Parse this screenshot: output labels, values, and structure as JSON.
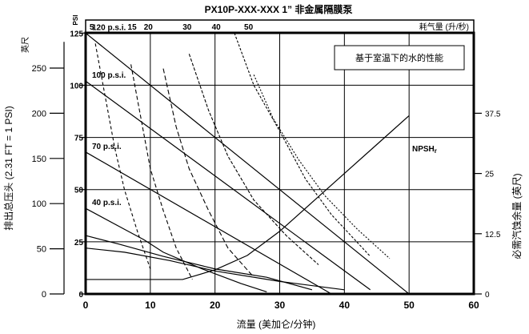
{
  "chart_data": {
    "type": "line",
    "title": "PX10P-XXX-XXX 1” 非金属隔膜泵",
    "xlabel": "流量 (美加仑/分钟)",
    "ylabel_left": "排出总压头 (2.31 FT = 1 PSI)",
    "ylabel_left_unit": "英尺",
    "ylabel_left_psi": "PSI",
    "ylabel_right": "必需汽蚀余量 (英尺)",
    "top_axis_label": "耗气量 (升/秒)",
    "annotation_box": "基于室温下的水的性能",
    "npsh_label": "NPSH",
    "npsh_sub": "r",
    "xlim": [
      0,
      60
    ],
    "ylim_ft": [
      0,
      289
    ],
    "x_ticks": [
      0,
      10,
      20,
      30,
      40,
      50,
      60
    ],
    "x_tick_labels": [
      "0",
      "10",
      "20",
      "30",
      "40",
      "50",
      "60"
    ],
    "y_ft_ticks": [
      0,
      50,
      100,
      150,
      200,
      250
    ],
    "y_ft_tick_labels": [
      "0",
      "50",
      "100",
      "150",
      "200",
      "250"
    ],
    "y_psi_ticks": [
      0,
      25,
      50,
      75,
      100,
      125
    ],
    "y_psi_tick_labels": [
      "0",
      "25",
      "50",
      "75",
      "100",
      "125"
    ],
    "y_npsh_ticks": [
      0,
      12.5,
      25,
      37.5
    ],
    "y_npsh_tick_labels": [
      "0",
      "12.5",
      "25",
      "37.5"
    ],
    "air_top_labels": [
      "5",
      "15",
      "20",
      "30",
      "40",
      "50"
    ],
    "grid": true,
    "pressure_series": [
      {
        "name": "120 p.s.i.",
        "psi_label": "120 p.s.i.",
        "x": [
          0,
          50
        ],
        "y_psi": [
          125,
          0
        ]
      },
      {
        "name": "100 p.s.i.",
        "psi_label": "100 p.s.i.",
        "x": [
          0,
          44
        ],
        "y_psi": [
          102,
          2
        ]
      },
      {
        "name": "70 p.s.i.",
        "psi_label": "70 p.s.i.",
        "x": [
          0,
          38
        ],
        "y_psi": [
          68,
          0
        ]
      },
      {
        "name": "40 p.s.i.",
        "psi_label": "40 p.s.i.",
        "x": [
          0,
          6,
          9,
          12,
          18,
          24,
          28
        ],
        "y_psi": [
          41,
          31,
          26,
          20,
          12,
          5,
          1
        ]
      },
      {
        "name": "",
        "psi_label": "",
        "x": [
          0,
          5,
          12,
          20,
          28,
          35
        ],
        "y_psi": [
          28,
          24,
          18,
          12,
          8,
          2
        ]
      },
      {
        "name": "",
        "psi_label": "",
        "x": [
          0,
          6,
          13,
          20,
          30,
          40
        ],
        "y_psi": [
          22,
          20,
          16,
          11,
          6,
          2
        ]
      }
    ],
    "air_series": [
      {
        "name": "5",
        "x": [
          1.5,
          3,
          4.5,
          6,
          8,
          10
        ],
        "y_psi": [
          120,
          95,
          70,
          50,
          30,
          12
        ]
      },
      {
        "name": "15",
        "x": [
          7,
          8.5,
          10,
          12,
          14,
          16.5
        ],
        "y_psi": [
          110,
          85,
          60,
          40,
          22,
          7
        ]
      },
      {
        "name": "20",
        "x": [
          12,
          14,
          16,
          19,
          22,
          26
        ],
        "y_psi": [
          108,
          80,
          60,
          40,
          22,
          8
        ]
      },
      {
        "name": "30",
        "x": [
          16,
          19,
          22,
          26,
          31,
          36
        ],
        "y_psi": [
          115,
          88,
          66,
          45,
          28,
          14
        ]
      },
      {
        "name": "40",
        "x": [
          23,
          26,
          30,
          34,
          38,
          44
        ],
        "y_psi": [
          125,
          100,
          78,
          55,
          38,
          18
        ]
      },
      {
        "name": "50",
        "x": [
          26,
          29,
          33,
          37,
          42,
          47
        ],
        "y_psi": [
          105,
          84,
          64,
          47,
          31,
          17
        ]
      }
    ],
    "npsh_series": {
      "name": "NPSHr",
      "x": [
        0,
        5,
        10,
        15,
        20,
        25,
        30,
        35,
        40,
        45,
        50
      ],
      "y_npsh": [
        3,
        3,
        3,
        3,
        5,
        8,
        13,
        19,
        25,
        31,
        37
      ]
    }
  }
}
